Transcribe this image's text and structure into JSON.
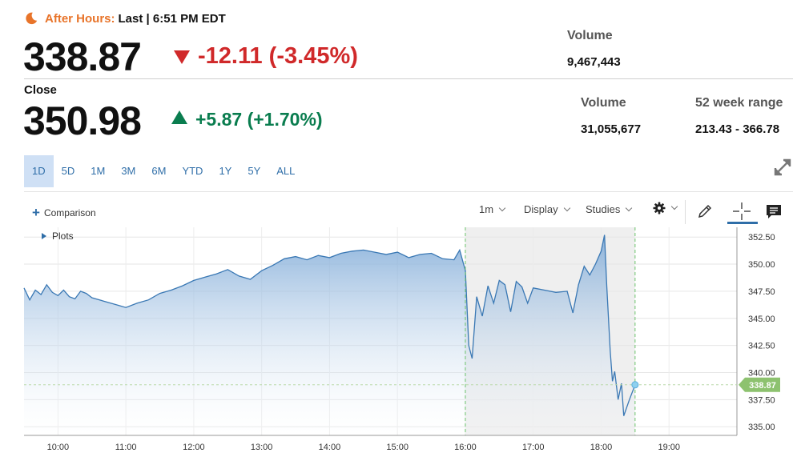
{
  "after_hours": {
    "label": "After Hours:",
    "status": "Last | 6:51 PM EDT",
    "price": "338.87",
    "change": "-12.11 (-3.45%)",
    "volume_label": "Volume",
    "volume_value": "9,467,443"
  },
  "close": {
    "label": "Close",
    "price": "350.98",
    "change": "+5.87 (+1.70%)",
    "volume_label": "Volume",
    "volume_value": "31,055,677",
    "range_label": "52 week range",
    "range_value": "213.43 - 366.78"
  },
  "range_tabs": [
    "1D",
    "5D",
    "1M",
    "3M",
    "6M",
    "YTD",
    "1Y",
    "5Y",
    "ALL"
  ],
  "active_tab": "1D",
  "toolbar": {
    "comparison": "Comparison",
    "interval": "1m",
    "display": "Display",
    "studies": "Studies",
    "plots": "Plots"
  },
  "colors": {
    "down": "#d0292a",
    "up": "#0a7d4f",
    "after_hours": "#e8742a",
    "line": "#3a78b4",
    "last_price_tag": "#8dc26f"
  },
  "icons": [
    "moon-icon",
    "expand-icon",
    "gear-icon",
    "pencil-icon",
    "crosshair-icon",
    "comment-icon"
  ],
  "chart_data": {
    "type": "area",
    "x_ticks": [
      "10:00",
      "11:00",
      "12:00",
      "13:00",
      "14:00",
      "15:00",
      "16:00",
      "17:00",
      "18:00",
      "19:00"
    ],
    "y_ticks": [
      "352.50",
      "350.00",
      "347.50",
      "345.00",
      "342.50",
      "340.00",
      "337.50",
      "335.00"
    ],
    "ylim": [
      334.2,
      353.4
    ],
    "xlim": [
      "09:30",
      "20:00"
    ],
    "last_price_label": "338.87",
    "last_price": 338.87,
    "extended_hours_shaded": [
      "16:00",
      "18:30"
    ],
    "series": [
      {
        "x": [
          "09:30",
          "09:35",
          "09:40",
          "09:45",
          "09:50",
          "09:55",
          "10:00",
          "10:05",
          "10:10",
          "10:15",
          "10:20",
          "10:25",
          "10:30",
          "10:40",
          "10:50",
          "11:00",
          "11:10",
          "11:20",
          "11:30",
          "11:40",
          "11:50",
          "12:00",
          "12:10",
          "12:20",
          "12:30",
          "12:40",
          "12:50",
          "13:00",
          "13:10",
          "13:20",
          "13:30",
          "13:40",
          "13:50",
          "14:00",
          "14:10",
          "14:20",
          "14:30",
          "14:40",
          "14:50",
          "15:00",
          "15:10",
          "15:20",
          "15:30",
          "15:40",
          "15:50",
          "15:55",
          "16:00",
          "16:03",
          "16:06",
          "16:10",
          "16:15",
          "16:20",
          "16:25",
          "16:30",
          "16:35",
          "16:40",
          "16:45",
          "16:50",
          "16:55",
          "17:00",
          "17:10",
          "17:20",
          "17:30",
          "17:35",
          "17:40",
          "17:45",
          "17:50",
          "17:55",
          "18:00",
          "18:03",
          "18:05",
          "18:08",
          "18:10",
          "18:12",
          "18:15",
          "18:18",
          "18:20",
          "18:25",
          "18:30"
        ],
        "values": [
          347.8,
          346.7,
          347.6,
          347.2,
          348.1,
          347.4,
          347.1,
          347.6,
          347.0,
          346.8,
          347.5,
          347.3,
          346.9,
          346.6,
          346.3,
          346.0,
          346.4,
          346.7,
          347.3,
          347.6,
          348.0,
          348.5,
          348.8,
          349.1,
          349.5,
          348.9,
          348.6,
          349.4,
          349.9,
          350.5,
          350.7,
          350.4,
          350.8,
          350.6,
          351.0,
          351.2,
          351.3,
          351.1,
          350.9,
          351.1,
          350.6,
          350.9,
          351.0,
          350.5,
          350.4,
          351.3,
          349.4,
          342.5,
          341.3,
          347.0,
          345.2,
          348.0,
          346.4,
          348.5,
          348.1,
          345.6,
          348.4,
          347.9,
          346.4,
          347.8,
          347.6,
          347.4,
          347.5,
          345.5,
          348.1,
          349.8,
          349.0,
          350.0,
          351.2,
          352.7,
          348.0,
          342.0,
          339.2,
          340.1,
          337.5,
          339.0,
          336.0,
          337.5,
          338.87
        ]
      }
    ]
  }
}
